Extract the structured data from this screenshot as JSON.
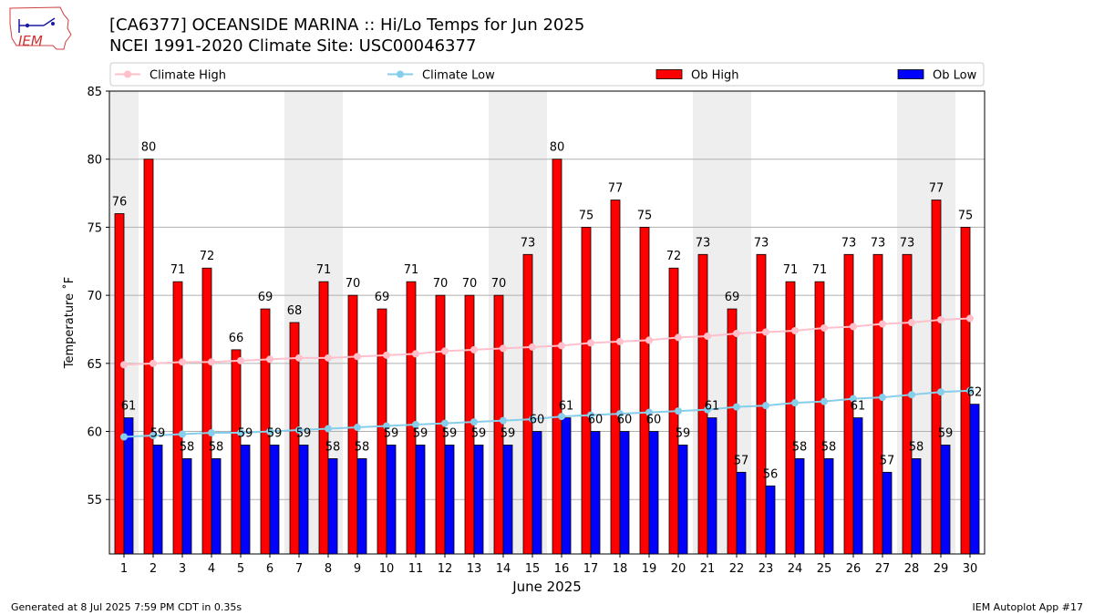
{
  "header": {
    "logo_text": "IEM",
    "title_line1": "[CA6377] OCEANSIDE MARINA :: Hi/Lo Temps for Jun 2025",
    "title_line2": "NCEI 1991-2020 Climate Site: USC00046377"
  },
  "footer": {
    "generated": "Generated at 8 Jul 2025 7:59 PM CDT in 0.35s",
    "app": "IEM Autoplot App #17"
  },
  "colors": {
    "ob_high": "#ff0000",
    "ob_low": "#0000ff",
    "climate_high": "#ffc0cb",
    "climate_low": "#87ceeb",
    "weekend_shade": "#eeeeee"
  },
  "chart_data": {
    "type": "bar",
    "xlabel": "June 2025",
    "ylabel": "Temperature ˚F",
    "ylim": [
      51,
      85
    ],
    "yticks": [
      55,
      60,
      65,
      70,
      75,
      80,
      85
    ],
    "grid": true,
    "legend_placement": "top",
    "categories": [
      "1",
      "2",
      "3",
      "4",
      "5",
      "6",
      "7",
      "8",
      "9",
      "10",
      "11",
      "12",
      "13",
      "14",
      "15",
      "16",
      "17",
      "18",
      "19",
      "20",
      "21",
      "22",
      "23",
      "24",
      "25",
      "26",
      "27",
      "28",
      "29",
      "30"
    ],
    "weekend_days": [
      1,
      7,
      8,
      14,
      15,
      21,
      22,
      28,
      29
    ],
    "series": [
      {
        "name": "Ob High",
        "kind": "bar",
        "values": [
          76,
          80,
          71,
          72,
          66,
          69,
          68,
          71,
          70,
          69,
          71,
          70,
          70,
          70,
          73,
          80,
          75,
          77,
          75,
          72,
          73,
          69,
          73,
          71,
          71,
          73,
          73,
          73,
          77,
          75
        ]
      },
      {
        "name": "Ob Low",
        "kind": "bar",
        "values": [
          61,
          59,
          58,
          58,
          59,
          59,
          59,
          58,
          58,
          59,
          59,
          59,
          59,
          59,
          60,
          61,
          60,
          60,
          60,
          59,
          61,
          57,
          56,
          58,
          58,
          61,
          57,
          58,
          59,
          62
        ]
      },
      {
        "name": "Climate High",
        "kind": "line",
        "values": [
          64.9,
          65.0,
          65.1,
          65.1,
          65.2,
          65.3,
          65.4,
          65.4,
          65.5,
          65.6,
          65.7,
          65.9,
          66.0,
          66.1,
          66.2,
          66.3,
          66.5,
          66.6,
          66.7,
          66.9,
          67.0,
          67.2,
          67.3,
          67.4,
          67.6,
          67.7,
          67.9,
          68.0,
          68.2,
          68.3
        ]
      },
      {
        "name": "Climate Low",
        "kind": "line",
        "values": [
          59.6,
          59.7,
          59.8,
          59.9,
          59.9,
          60.0,
          60.1,
          60.2,
          60.3,
          60.4,
          60.5,
          60.6,
          60.7,
          60.8,
          60.9,
          61.1,
          61.2,
          61.3,
          61.4,
          61.5,
          61.6,
          61.8,
          61.9,
          62.1,
          62.2,
          62.4,
          62.5,
          62.7,
          62.9,
          63.0
        ]
      }
    ]
  }
}
